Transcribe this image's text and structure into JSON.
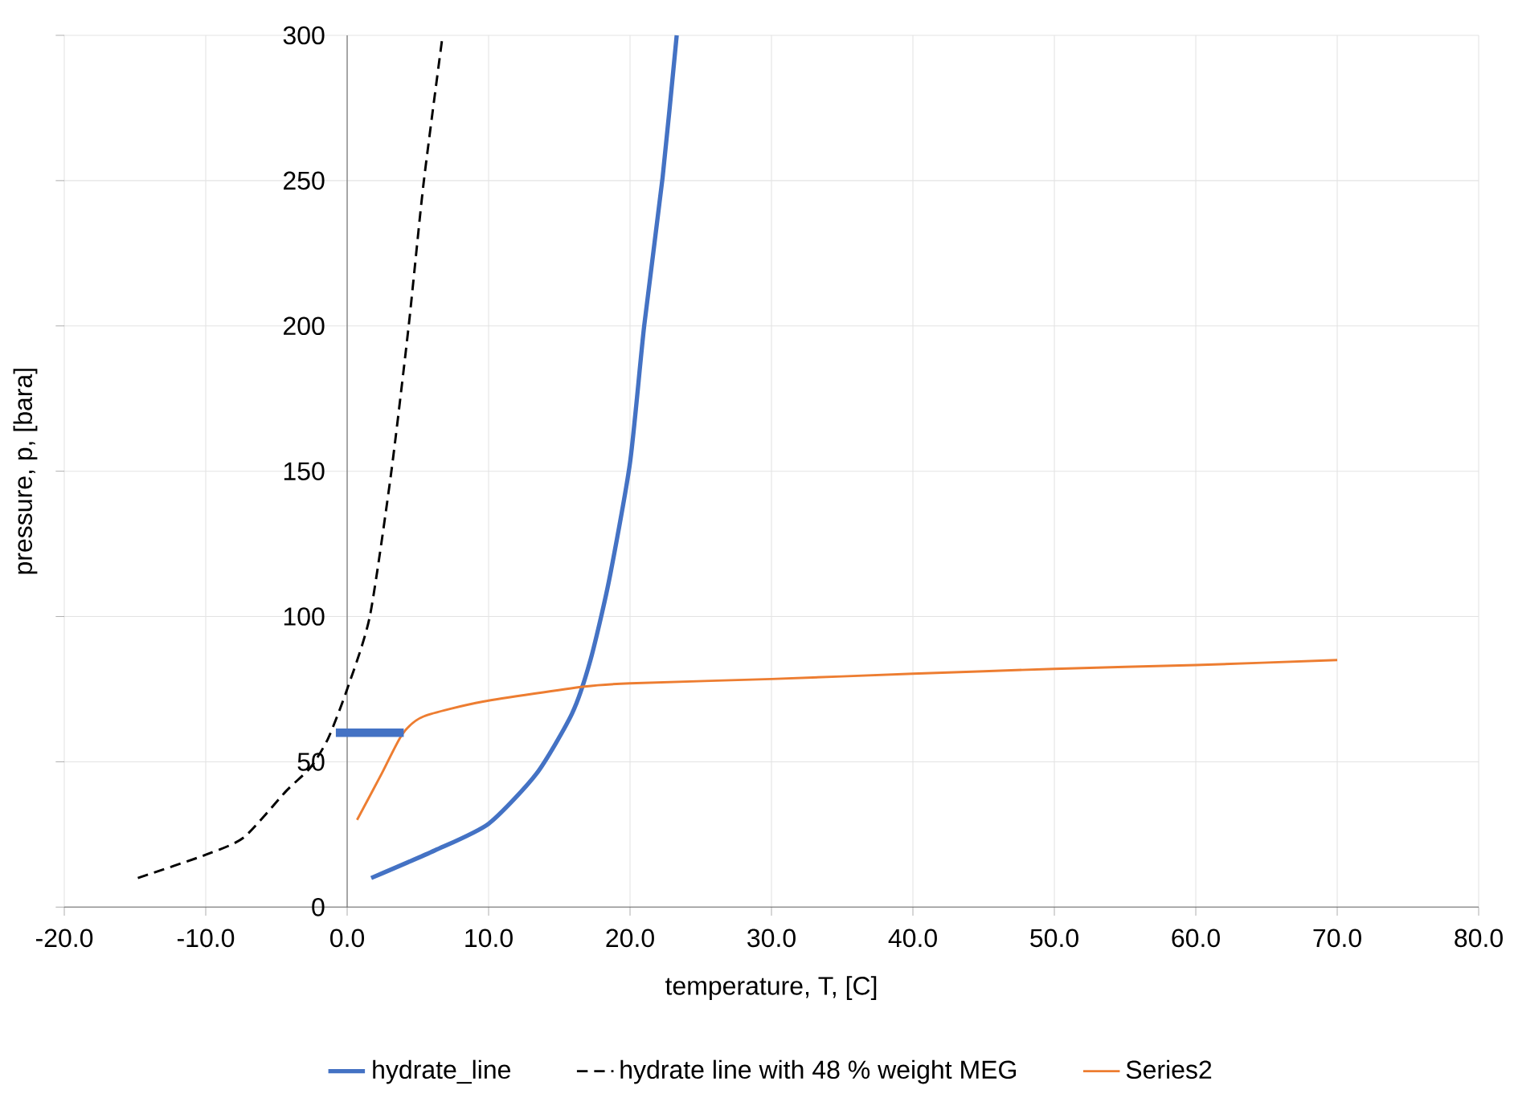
{
  "chart_data": {
    "type": "line",
    "xlabel": "temperature, T, [C]",
    "ylabel": "pressure, p, [bara]",
    "xlim": [
      -20,
      80
    ],
    "ylim": [
      0,
      300
    ],
    "xticks": [
      {
        "value": -20,
        "label": "-20.0"
      },
      {
        "value": -10,
        "label": "-10.0"
      },
      {
        "value": 0,
        "label": "0.0"
      },
      {
        "value": 10,
        "label": "10.0"
      },
      {
        "value": 20,
        "label": "20.0"
      },
      {
        "value": 30,
        "label": "30.0"
      },
      {
        "value": 40,
        "label": "40.0"
      },
      {
        "value": 50,
        "label": "50.0"
      },
      {
        "value": 60,
        "label": "60.0"
      },
      {
        "value": 70,
        "label": "70.0"
      },
      {
        "value": 80,
        "label": "80.0"
      }
    ],
    "yticks": [
      0,
      50,
      100,
      150,
      200,
      250,
      300
    ],
    "grid": true,
    "legend": "bottom",
    "series": [
      {
        "name": "hydrate_line",
        "color": "#4472c4",
        "line_style": "solid",
        "x": [
          1.7,
          6.2,
          10,
          13.4,
          15.9,
          17.2,
          18.5,
          20,
          21,
          22.3,
          23.3
        ],
        "values": [
          10,
          19.5,
          28.7,
          46,
          66.6,
          85,
          112,
          153,
          200,
          251,
          300
        ]
      },
      {
        "name": "hydrate line with 48 % weight MEG",
        "color": "#000000",
        "line_style": "dashed",
        "x": [
          -14.8,
          -10,
          -7.3,
          -4.3,
          -2.6,
          -1.35,
          0,
          1.6,
          3.1,
          4.35,
          5.4,
          6.75
        ],
        "values": [
          10,
          18,
          24,
          40,
          48,
          58,
          75,
          100,
          149,
          200,
          249,
          300
        ]
      },
      {
        "name": "Series2",
        "color": "#ed7d31",
        "line_style": "solid",
        "x": [
          0.7,
          2.45,
          3.9,
          5.4,
          9.6,
          16.8,
          20,
          30,
          40,
          50,
          60,
          70
        ],
        "values": [
          30,
          46,
          59.5,
          65.6,
          70.7,
          75.9,
          77,
          78.5,
          80.3,
          82,
          83.3,
          85
        ]
      },
      {
        "color": "#4472c4",
        "line_style": "solid",
        "x": [
          -0.8,
          4.0
        ],
        "values": [
          60,
          60
        ]
      }
    ]
  }
}
